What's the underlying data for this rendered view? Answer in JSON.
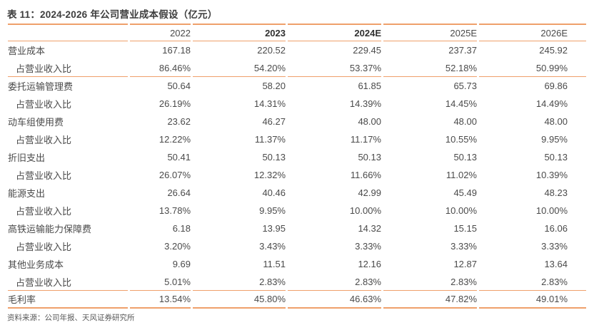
{
  "title": "表 11：2024-2026 年公司营业成本假设（亿元）",
  "source": "资料来源：公司年报、天风证券研究所",
  "colors": {
    "accent": "#EFA06B",
    "text": "#4A4A4A",
    "header_bold_text": "#303030",
    "source_text": "#5A5A5A"
  },
  "table": {
    "columns": [
      {
        "label": "",
        "bold": false
      },
      {
        "label": "2022",
        "bold": false
      },
      {
        "label": "2023",
        "bold": true
      },
      {
        "label": "2024E",
        "bold": true
      },
      {
        "label": "2025E",
        "bold": false
      },
      {
        "label": "2026E",
        "bold": false
      }
    ],
    "rows": [
      {
        "label": "营业成本",
        "indent": false,
        "rule_after": "none",
        "values": [
          "167.18",
          "220.52",
          "229.45",
          "237.37",
          "245.92"
        ]
      },
      {
        "label": "占营业收入比",
        "indent": true,
        "rule_after": "thin",
        "values": [
          "86.46%",
          "54.20%",
          "53.37%",
          "52.18%",
          "50.99%"
        ]
      },
      {
        "label": "委托运输管理费",
        "indent": false,
        "rule_after": "none",
        "values": [
          "50.64",
          "58.20",
          "61.85",
          "65.73",
          "69.86"
        ]
      },
      {
        "label": "占营业收入比",
        "indent": true,
        "rule_after": "none",
        "values": [
          "26.19%",
          "14.31%",
          "14.39%",
          "14.45%",
          "14.49%"
        ]
      },
      {
        "label": "动车组使用费",
        "indent": false,
        "rule_after": "none",
        "values": [
          "23.62",
          "46.27",
          "48.00",
          "48.00",
          "48.00"
        ]
      },
      {
        "label": "占营业收入比",
        "indent": true,
        "rule_after": "none",
        "values": [
          "12.22%",
          "11.37%",
          "11.17%",
          "10.55%",
          "9.95%"
        ]
      },
      {
        "label": "折旧支出",
        "indent": false,
        "rule_after": "none",
        "values": [
          "50.41",
          "50.13",
          "50.13",
          "50.13",
          "50.13"
        ]
      },
      {
        "label": "占营业收入比",
        "indent": true,
        "rule_after": "none",
        "values": [
          "26.07%",
          "12.32%",
          "11.66%",
          "11.02%",
          "10.39%"
        ]
      },
      {
        "label": "能源支出",
        "indent": false,
        "rule_after": "none",
        "values": [
          "26.64",
          "40.46",
          "42.99",
          "45.49",
          "48.23"
        ]
      },
      {
        "label": "占营业收入比",
        "indent": true,
        "rule_after": "none",
        "values": [
          "13.78%",
          "9.95%",
          "10.00%",
          "10.00%",
          "10.00%"
        ]
      },
      {
        "label": "高铁运输能力保障费",
        "indent": false,
        "rule_after": "none",
        "values": [
          "6.18",
          "13.95",
          "14.32",
          "15.15",
          "16.06"
        ]
      },
      {
        "label": "占营业收入比",
        "indent": true,
        "rule_after": "none",
        "values": [
          "3.20%",
          "3.43%",
          "3.33%",
          "3.33%",
          "3.33%"
        ]
      },
      {
        "label": "其他业务成本",
        "indent": false,
        "rule_after": "none",
        "values": [
          "9.69",
          "11.51",
          "12.16",
          "12.87",
          "13.64"
        ]
      },
      {
        "label": "占营业收入比",
        "indent": true,
        "rule_after": "thin",
        "values": [
          "5.01%",
          "2.83%",
          "2.83%",
          "2.83%",
          "2.83%"
        ]
      },
      {
        "label": "毛利率",
        "indent": false,
        "rule_after": "thick",
        "values": [
          "13.54%",
          "45.80%",
          "46.63%",
          "47.82%",
          "49.01%"
        ]
      }
    ]
  }
}
